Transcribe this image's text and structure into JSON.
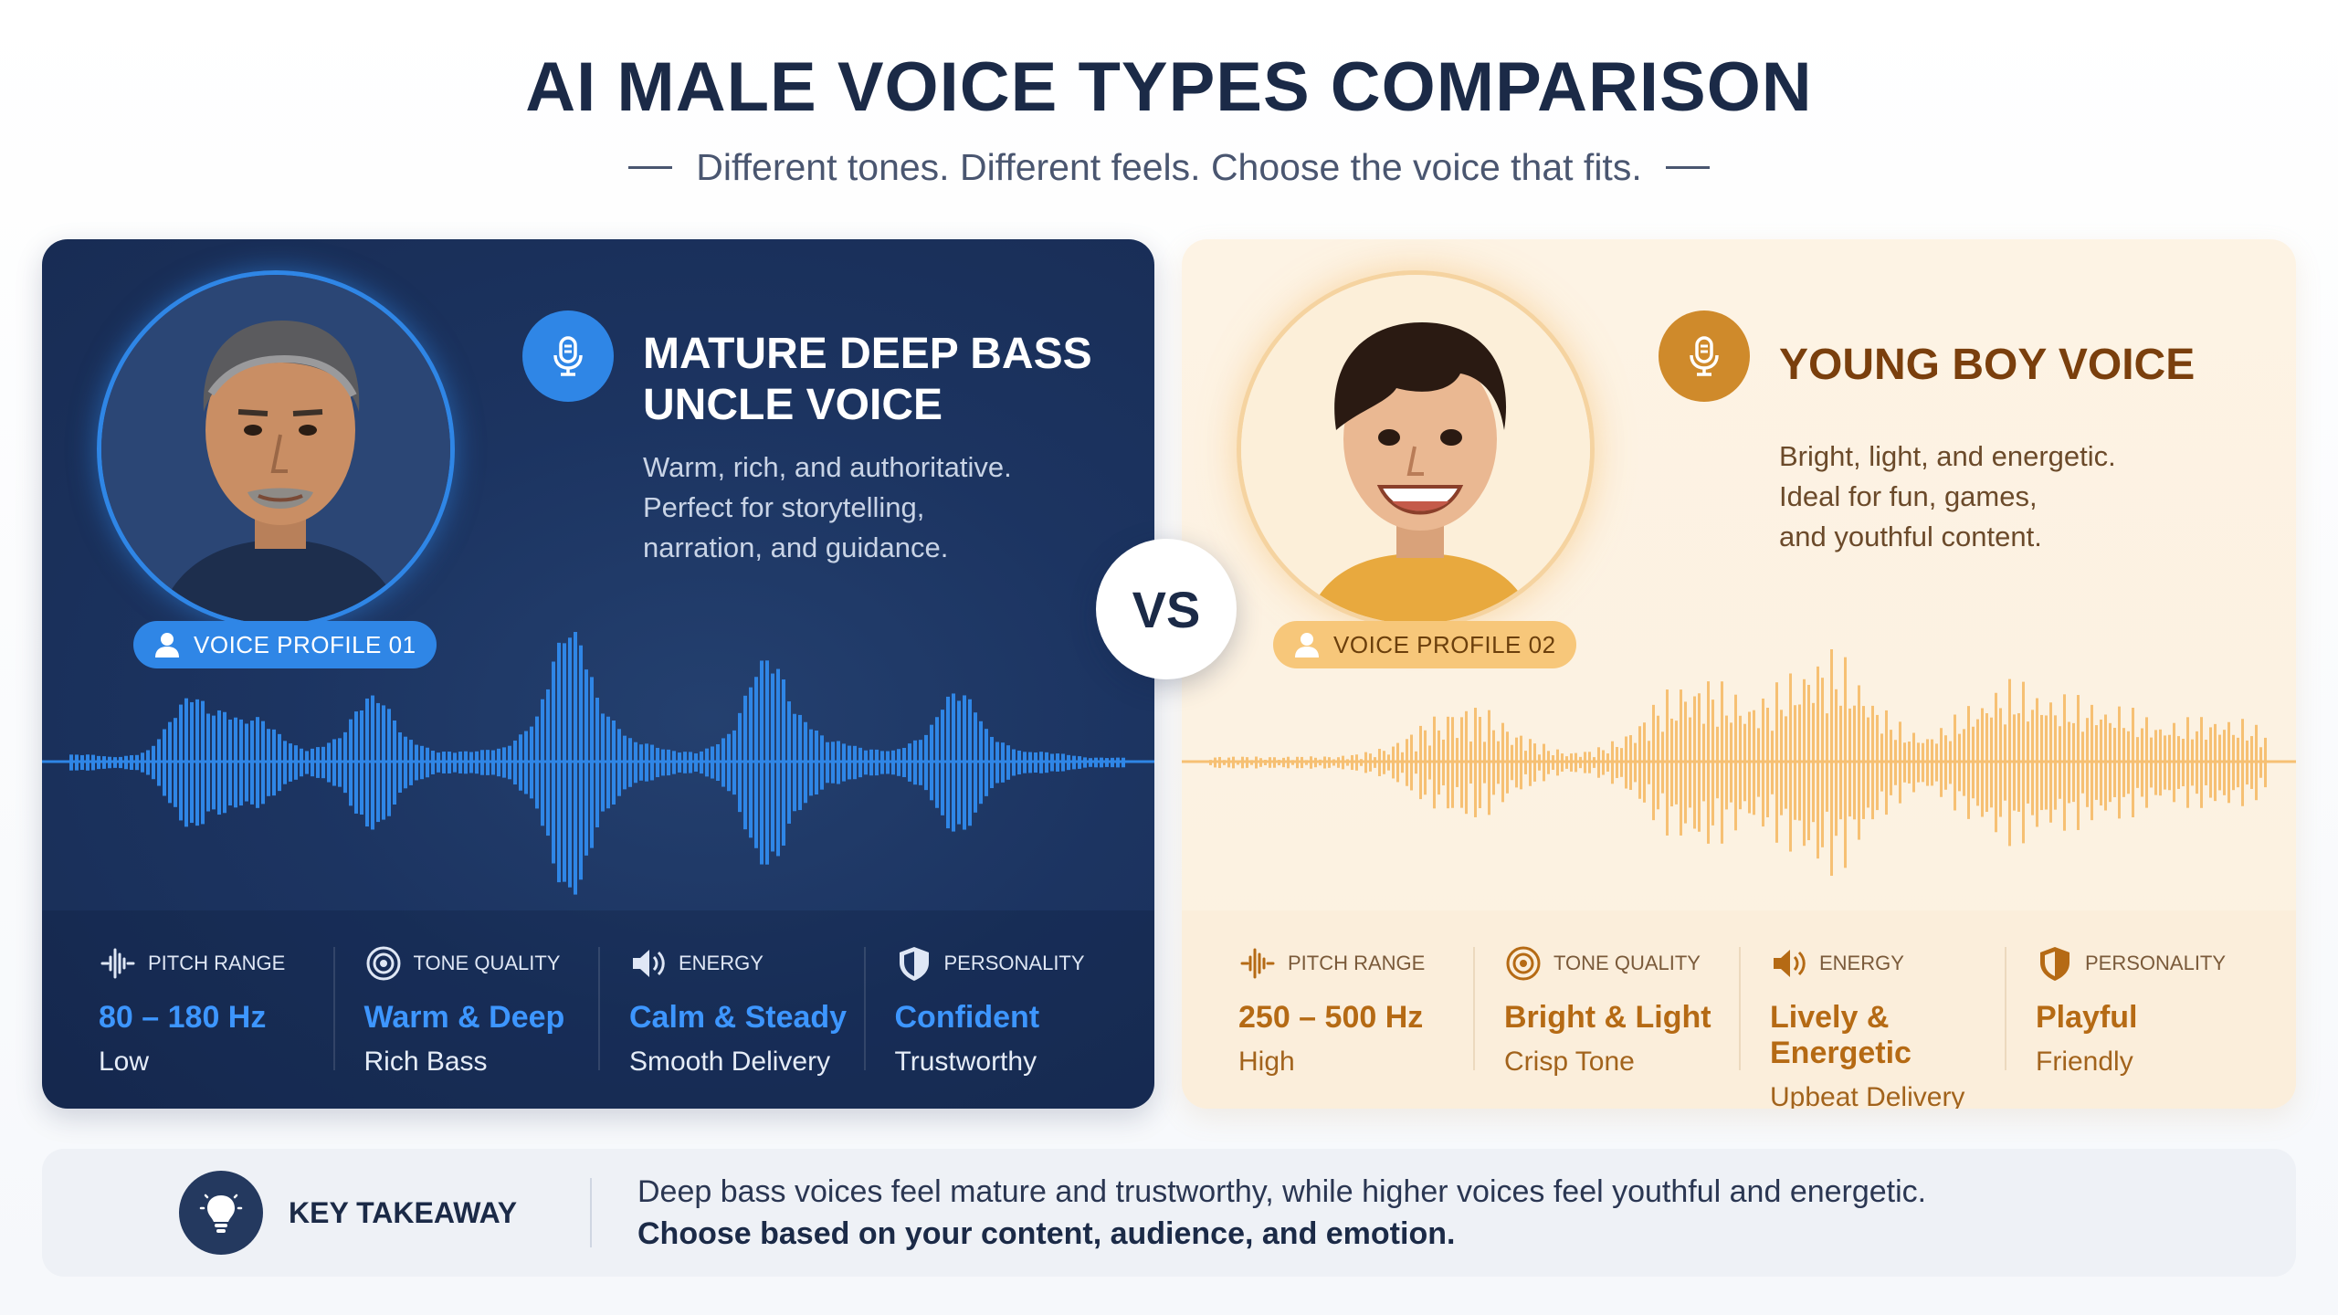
{
  "header": {
    "title": "AI MALE VOICE TYPES COMPARISON",
    "subtitle": "Different tones. Different feels. Choose the voice that fits."
  },
  "vs_label": "VS",
  "profiles": [
    {
      "badge": "VOICE PROFILE 01",
      "title_line1": "MATURE DEEP BASS",
      "title_line2": "UNCLE VOICE",
      "description": [
        "Warm, rich, and authoritative.",
        "Perfect for storytelling,",
        "narration, and guidance."
      ],
      "accent_color": "#2f86e6",
      "stats": [
        {
          "label": "PITCH RANGE",
          "value": "80 – 180 Hz",
          "sub": "Low",
          "icon": "waveform-icon"
        },
        {
          "label": "TONE QUALITY",
          "value": "Warm & Deep",
          "sub": "Rich Bass",
          "icon": "target-icon"
        },
        {
          "label": "ENERGY",
          "value": "Calm & Steady",
          "sub": "Smooth Delivery",
          "icon": "speaker-icon"
        },
        {
          "label": "PERSONALITY",
          "value": "Confident",
          "sub": "Trustworthy",
          "icon": "shield-icon"
        }
      ]
    },
    {
      "badge": "VOICE PROFILE 02",
      "title_line1": "YOUNG BOY VOICE",
      "title_line2": "",
      "description": [
        "Bright, light, and energetic.",
        "Ideal for fun, games,",
        "and youthful content."
      ],
      "accent_color": "#cf8a2b",
      "stats": [
        {
          "label": "PITCH RANGE",
          "value": "250 – 500 Hz",
          "sub": "High",
          "icon": "waveform-icon"
        },
        {
          "label": "TONE QUALITY",
          "value": "Bright & Light",
          "sub": "Crisp Tone",
          "icon": "target-icon"
        },
        {
          "label": "ENERGY",
          "value": "Lively & Energetic",
          "sub": "Upbeat Delivery",
          "icon": "speaker-icon"
        },
        {
          "label": "PERSONALITY",
          "value": "Playful",
          "sub": "Friendly",
          "icon": "shield-icon"
        }
      ]
    }
  ],
  "takeaway": {
    "label": "KEY TAKEAWAY",
    "line1": "Deep bass voices feel mature and trustworthy, while higher voices feel youthful and energetic.",
    "line2": "Choose based on your content, audience, and emotion."
  }
}
